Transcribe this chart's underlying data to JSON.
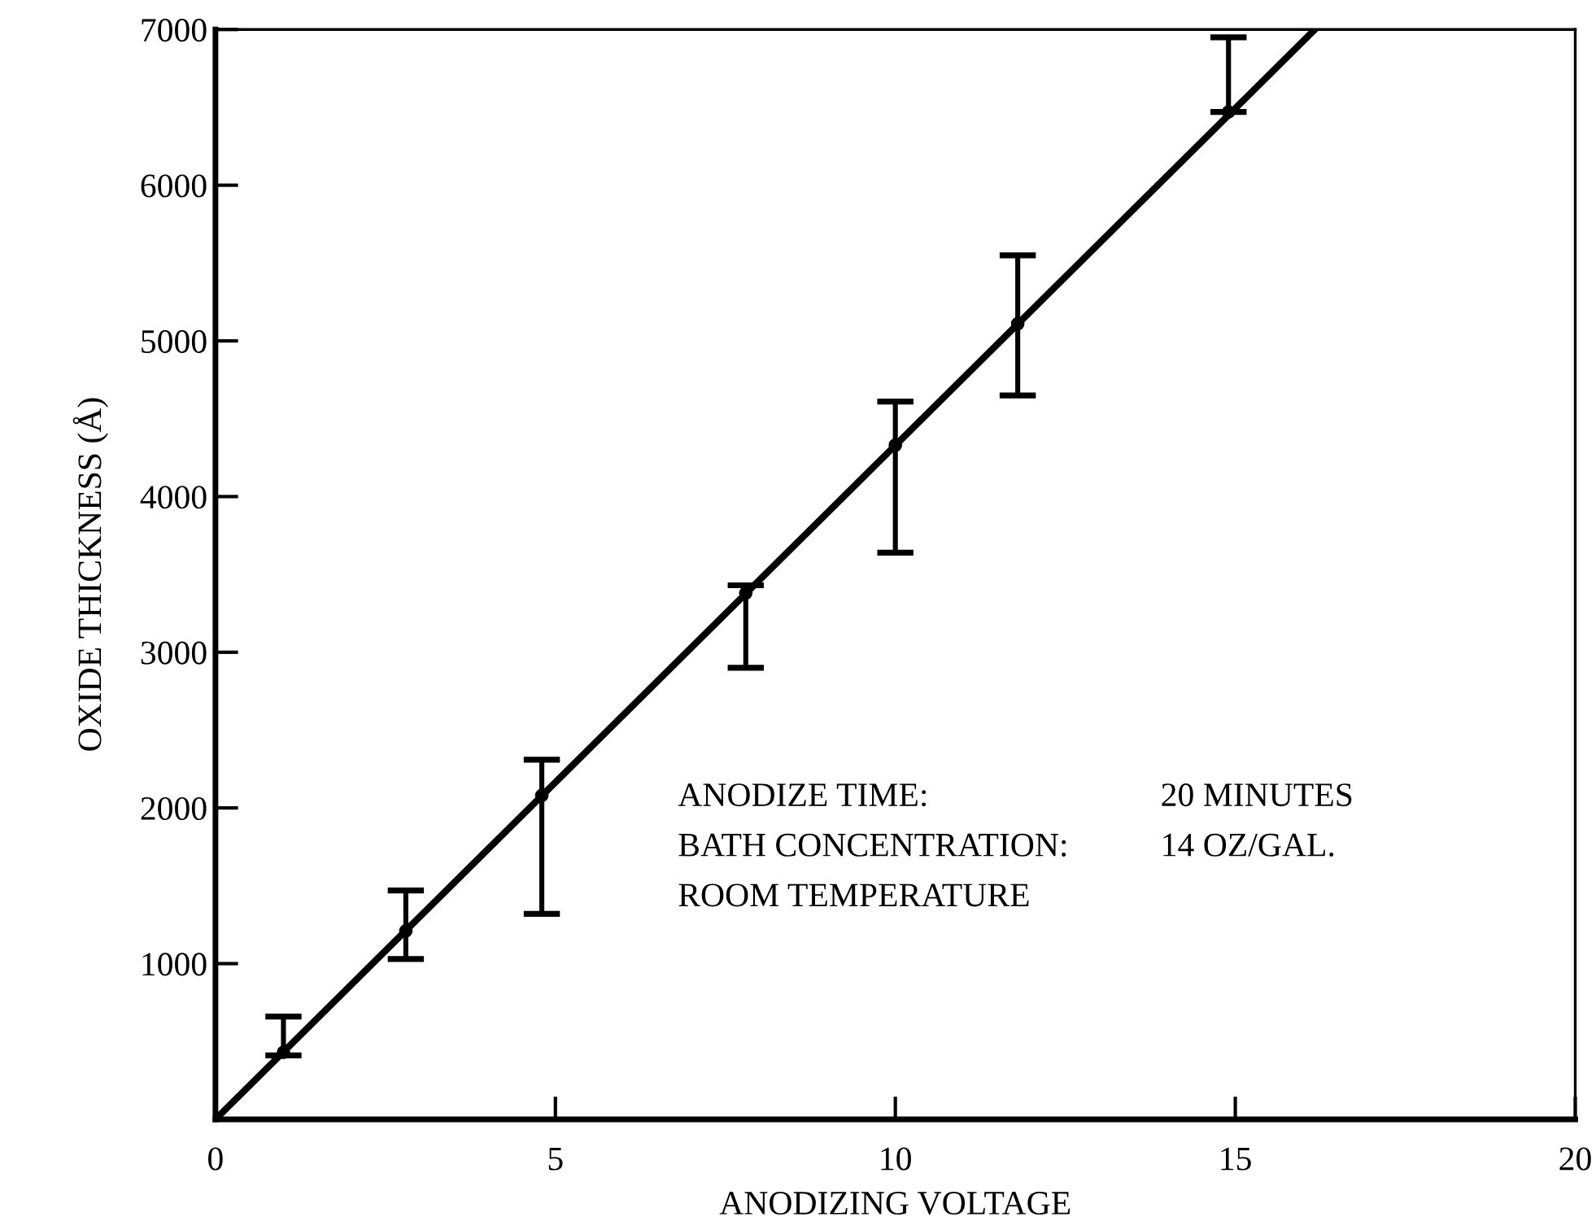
{
  "chart_data": {
    "type": "scatter",
    "xlabel": "ANODIZING VOLTAGE",
    "ylabel": "OXIDE THICKNESS (Å)",
    "xlim": [
      0,
      20
    ],
    "ylim": [
      0,
      7000
    ],
    "xticks": [
      0,
      5,
      10,
      15,
      20
    ],
    "yticks": [
      1000,
      2000,
      3000,
      4000,
      5000,
      6000,
      7000
    ],
    "grid": false,
    "legend": false,
    "series": [
      {
        "marker": "circle",
        "color": "#000000",
        "x": [
          1,
          2.8,
          4.8,
          7.8,
          10,
          11.8,
          14.9
        ],
        "values": [
          430,
          1210,
          2080,
          3380,
          4330,
          5110,
          6470
        ],
        "errors": [
          [
            410,
            660
          ],
          [
            1030,
            1470
          ],
          [
            1320,
            2310
          ],
          [
            2900,
            3430
          ],
          [
            3640,
            4610
          ],
          [
            4650,
            5550
          ],
          [
            6470,
            6950
          ]
        ]
      },
      {
        "type": "line",
        "line_style": "solid",
        "color": "#000000",
        "x": [
          0,
          16.17
        ],
        "values": [
          0,
          7000
        ]
      }
    ],
    "annotations": [
      "ANODIZE TIME:",
      "20 MINUTES",
      "BATH CONCENTRATION:",
      "14 OZ/GAL.",
      "ROOM TEMPERATURE"
    ]
  }
}
